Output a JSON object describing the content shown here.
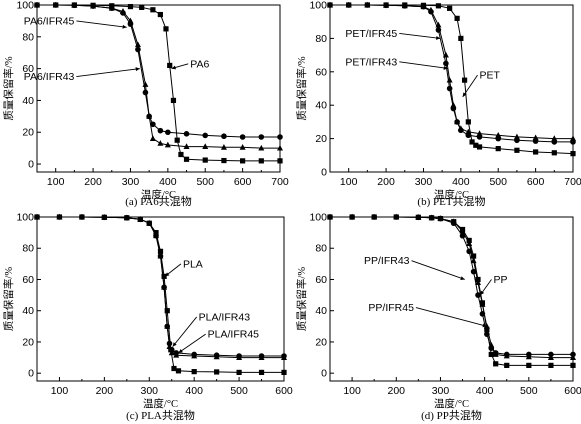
{
  "chart_data": [
    {
      "type": "line",
      "caption": "(a) PA6共混物",
      "xlabel": "温度/°C",
      "ylabel": "质量保留率/%",
      "xlim": [
        50,
        700
      ],
      "ylim": [
        -5,
        100
      ],
      "xticks": [
        100,
        200,
        300,
        400,
        500,
        600,
        700
      ],
      "yticks": [
        0,
        20,
        40,
        60,
        80,
        100
      ],
      "series": [
        {
          "name": "PA6",
          "marker": "square",
          "x": [
            50,
            100,
            150,
            200,
            250,
            300,
            330,
            360,
            380,
            395,
            405,
            415,
            425,
            435,
            450,
            500,
            550,
            600,
            650,
            700
          ],
          "y": [
            100,
            100,
            100,
            99.8,
            99.5,
            99,
            98.5,
            97,
            94,
            85,
            62,
            40,
            15,
            6,
            3,
            2.5,
            2.2,
            2,
            2,
            2
          ]
        },
        {
          "name": "PA6/IFR45",
          "marker": "triangle",
          "x": [
            50,
            100,
            150,
            200,
            250,
            280,
            300,
            320,
            340,
            350,
            360,
            380,
            400,
            450,
            500,
            550,
            600,
            650,
            700
          ],
          "y": [
            100,
            100,
            99.8,
            99.3,
            98,
            96,
            90,
            75,
            50,
            30,
            16,
            13,
            12,
            11,
            11,
            10.5,
            10.5,
            10,
            10
          ]
        },
        {
          "name": "PA6/IFR43",
          "marker": "circle",
          "x": [
            50,
            100,
            150,
            200,
            250,
            280,
            300,
            320,
            340,
            350,
            360,
            380,
            400,
            450,
            500,
            550,
            600,
            650,
            700
          ],
          "y": [
            100,
            100,
            99.8,
            99.3,
            98,
            95,
            88,
            72,
            45,
            30,
            25,
            21,
            20,
            19,
            18,
            17.5,
            17,
            17,
            17
          ]
        }
      ],
      "annotations": [
        {
          "text": "PA6",
          "x": 460,
          "y": 63,
          "target_x": 410,
          "target_y": 60
        },
        {
          "text": "PA6/IFR45",
          "x": 150,
          "y": 90,
          "target_x": 290,
          "target_y": 86
        },
        {
          "text": "PA6/IFR43",
          "x": 150,
          "y": 55,
          "target_x": 325,
          "target_y": 60
        }
      ]
    },
    {
      "type": "line",
      "caption": "(b) PET共混物",
      "xlabel": "温度/°C",
      "ylabel": "质量保留率/%",
      "xlim": [
        50,
        700
      ],
      "ylim": [
        0,
        100
      ],
      "xticks": [
        100,
        200,
        300,
        400,
        500,
        600,
        700
      ],
      "yticks": [
        0,
        20,
        40,
        60,
        80,
        100
      ],
      "series": [
        {
          "name": "PET",
          "marker": "square",
          "x": [
            50,
            100,
            150,
            200,
            250,
            300,
            340,
            370,
            390,
            400,
            410,
            420,
            430,
            440,
            450,
            500,
            550,
            600,
            650,
            700
          ],
          "y": [
            100,
            100,
            100,
            100,
            100,
            99.8,
            99.5,
            98,
            92,
            80,
            55,
            30,
            18,
            16,
            15,
            14,
            13,
            12,
            11.5,
            11
          ]
        },
        {
          "name": "PET/IFR45",
          "marker": "triangle",
          "x": [
            50,
            100,
            150,
            200,
            250,
            300,
            320,
            340,
            360,
            370,
            380,
            390,
            400,
            420,
            450,
            500,
            550,
            600,
            650,
            700
          ],
          "y": [
            100,
            100,
            100,
            99.8,
            99.5,
            99,
            97,
            88,
            70,
            55,
            40,
            30,
            26,
            24,
            23,
            22,
            21,
            20.5,
            20,
            20
          ]
        },
        {
          "name": "PET/IFR43",
          "marker": "circle",
          "x": [
            50,
            100,
            150,
            200,
            250,
            300,
            320,
            340,
            360,
            370,
            380,
            390,
            400,
            420,
            450,
            500,
            550,
            600,
            650,
            700
          ],
          "y": [
            100,
            100,
            100,
            99.8,
            99.5,
            99,
            96,
            85,
            65,
            50,
            38,
            30,
            25,
            22,
            21,
            20,
            19,
            18.5,
            18,
            18
          ]
        }
      ],
      "annotations": [
        {
          "text": "PET",
          "x": 450,
          "y": 58,
          "target_x": 405,
          "target_y": 45
        },
        {
          "text": "PET/IFR45",
          "x": 230,
          "y": 83,
          "target_x": 345,
          "target_y": 80
        },
        {
          "text": "PET/IFR43",
          "x": 230,
          "y": 66,
          "target_x": 365,
          "target_y": 62
        }
      ]
    },
    {
      "type": "line",
      "caption": "(c) PLA共混物",
      "xlabel": "温度/°C",
      "ylabel": "质量保留率/%",
      "xlim": [
        50,
        600
      ],
      "ylim": [
        -5,
        100
      ],
      "xticks": [
        100,
        200,
        300,
        400,
        500,
        600
      ],
      "yticks": [
        0,
        20,
        40,
        60,
        80,
        100
      ],
      "series": [
        {
          "name": "PLA",
          "marker": "square",
          "x": [
            50,
            100,
            150,
            200,
            250,
            280,
            300,
            315,
            325,
            333,
            340,
            348,
            355,
            365,
            400,
            450,
            500,
            550,
            600
          ],
          "y": [
            100,
            100,
            100,
            99.8,
            99.5,
            98.5,
            96,
            90,
            78,
            62,
            40,
            15,
            3,
            1.5,
            1,
            0.8,
            0.5,
            0.5,
            0.5
          ]
        },
        {
          "name": "PLA/IFR43",
          "marker": "circle",
          "x": [
            50,
            100,
            150,
            200,
            250,
            280,
            300,
            315,
            325,
            333,
            340,
            345,
            350,
            360,
            400,
            450,
            500,
            550,
            600
          ],
          "y": [
            100,
            100,
            100,
            99.8,
            99.5,
            98.5,
            96,
            88,
            75,
            55,
            30,
            19,
            15,
            13,
            12,
            11.5,
            11,
            11,
            11
          ]
        },
        {
          "name": "PLA/IFR45",
          "marker": "triangle",
          "x": [
            50,
            100,
            150,
            200,
            250,
            280,
            300,
            315,
            325,
            333,
            340,
            345,
            350,
            360,
            400,
            450,
            500,
            550,
            600
          ],
          "y": [
            100,
            100,
            100,
            99.8,
            99.5,
            98.5,
            96,
            88,
            75,
            55,
            30,
            17,
            13,
            11.5,
            11,
            10.5,
            10,
            10,
            10
          ]
        }
      ],
      "annotations": [
        {
          "text": "PLA",
          "x": 375,
          "y": 70,
          "target_x": 335,
          "target_y": 62
        },
        {
          "text": "PLA/IFR43",
          "x": 410,
          "y": 36,
          "target_x": 352,
          "target_y": 17
        },
        {
          "text": "PLA/IFR45",
          "x": 430,
          "y": 25,
          "target_x": 365,
          "target_y": 13
        }
      ]
    },
    {
      "type": "line",
      "caption": "(d) PP共混物",
      "xlabel": "温度/°C",
      "ylabel": "质量保留率/%",
      "xlim": [
        50,
        600
      ],
      "ylim": [
        -5,
        100
      ],
      "xticks": [
        100,
        200,
        300,
        400,
        500,
        600
      ],
      "yticks": [
        0,
        20,
        40,
        60,
        80,
        100
      ],
      "series": [
        {
          "name": "PP",
          "marker": "square",
          "x": [
            50,
            100,
            150,
            200,
            250,
            280,
            300,
            330,
            350,
            365,
            375,
            385,
            395,
            405,
            415,
            425,
            450,
            500,
            550,
            600
          ],
          "y": [
            100,
            100,
            100,
            100,
            99.8,
            99.5,
            99,
            97,
            92,
            85,
            75,
            60,
            45,
            28,
            12,
            6,
            5,
            5,
            5,
            5
          ]
        },
        {
          "name": "PP/IFR43",
          "marker": "circle",
          "x": [
            50,
            100,
            150,
            200,
            250,
            280,
            300,
            330,
            350,
            365,
            375,
            385,
            395,
            405,
            415,
            425,
            450,
            500,
            550,
            600
          ],
          "y": [
            100,
            100,
            100,
            100,
            99.8,
            99.5,
            99,
            96,
            88,
            78,
            65,
            50,
            38,
            25,
            16,
            13,
            12,
            12,
            12,
            12
          ]
        },
        {
          "name": "PP/IFR45",
          "marker": "triangle",
          "x": [
            50,
            100,
            150,
            200,
            250,
            280,
            300,
            330,
            350,
            365,
            375,
            385,
            395,
            405,
            415,
            425,
            450,
            500,
            550,
            600
          ],
          "y": [
            100,
            100,
            100,
            100,
            99.8,
            99.5,
            99,
            97,
            91,
            83,
            72,
            58,
            44,
            30,
            18,
            12,
            11,
            10.5,
            10,
            10
          ]
        }
      ],
      "annotations": [
        {
          "text": "PP",
          "x": 420,
          "y": 60,
          "target_x": 390,
          "target_y": 50
        },
        {
          "text": "PP/IFR43",
          "x": 230,
          "y": 72,
          "target_x": 355,
          "target_y": 60
        },
        {
          "text": "PP/IFR45",
          "x": 240,
          "y": 42,
          "target_x": 405,
          "target_y": 30
        }
      ]
    }
  ]
}
